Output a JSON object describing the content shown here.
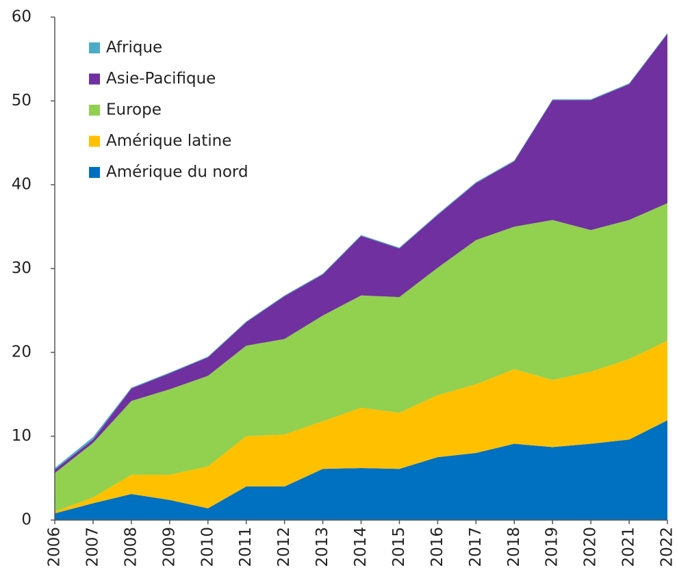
{
  "chart_data": {
    "type": "stacked_area",
    "x": [
      2006,
      2007,
      2008,
      2009,
      2010,
      2011,
      2012,
      2013,
      2014,
      2015,
      2016,
      2017,
      2018,
      2019,
      2020,
      2021,
      2022
    ],
    "xlim": [
      2006,
      2022
    ],
    "xticks": [
      2006,
      2007,
      2008,
      2009,
      2010,
      2011,
      2012,
      2013,
      2014,
      2015,
      2016,
      2017,
      2018,
      2019,
      2020,
      2021,
      2022
    ],
    "ylim": [
      0,
      60
    ],
    "yticks": [
      0,
      10,
      20,
      30,
      40,
      50,
      60
    ],
    "legend": "upper left",
    "series": [
      {
        "name": "Amérique du nord",
        "color": "#0070c0",
        "values": [
          0.8,
          2.0,
          3.1,
          2.4,
          1.4,
          4.0,
          4.0,
          6.1,
          6.2,
          6.1,
          7.5,
          8.0,
          9.1,
          8.7,
          9.1,
          9.6,
          11.9
        ]
      },
      {
        "name": "Amérique latine",
        "color": "#ffc000",
        "values": [
          0.2,
          0.7,
          2.3,
          3.0,
          5.0,
          6.0,
          6.2,
          5.7,
          7.2,
          6.7,
          7.4,
          8.2,
          8.9,
          8.0,
          8.6,
          9.6,
          9.5
        ]
      },
      {
        "name": "Europe",
        "color": "#92d050",
        "values": [
          4.6,
          6.5,
          8.8,
          10.2,
          10.8,
          10.8,
          11.4,
          12.6,
          13.4,
          13.8,
          15.2,
          17.2,
          17.0,
          19.1,
          16.9,
          16.6,
          16.4
        ]
      },
      {
        "name": "Asie-Pacifique",
        "color": "#7030a0",
        "values": [
          0.4,
          0.4,
          1.5,
          1.9,
          2.2,
          2.8,
          5.1,
          4.9,
          7.1,
          5.8,
          6.3,
          6.8,
          7.8,
          14.3,
          15.5,
          16.2,
          20.2
        ]
      },
      {
        "name": "Afrique",
        "color": "#4bacc6",
        "values": [
          0.2,
          0.3,
          0.1,
          0.1,
          0.1,
          0.1,
          0.1,
          0.1,
          0.1,
          0.1,
          0.1,
          0.1,
          0.1,
          0.1,
          0.1,
          0.1,
          0.1
        ]
      }
    ]
  }
}
